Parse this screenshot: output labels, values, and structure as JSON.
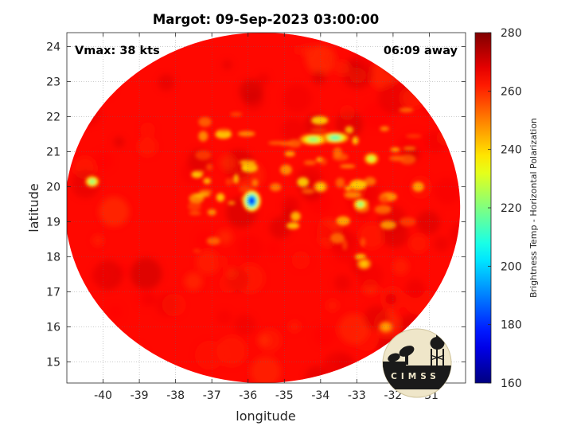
{
  "chart_data": {
    "type": "heatmap",
    "title": "Margot: 09-Sep-2023 03:00:00",
    "xlabel": "longitude",
    "ylabel": "latitude",
    "xlim": [
      -41,
      -30
    ],
    "ylim": [
      14.4,
      24.4
    ],
    "xticks": [
      -40,
      -39,
      -38,
      -37,
      -36,
      -35,
      -34,
      -33,
      -32,
      -31
    ],
    "yticks": [
      15,
      16,
      17,
      18,
      19,
      20,
      21,
      22,
      23,
      24
    ],
    "grid": true,
    "annotations": {
      "vmax": "Vmax: 38 kts",
      "away": "06:09 away"
    },
    "swath": {
      "center_lon": -35.6,
      "center_lat": 19.4,
      "radius_lon": 5.45,
      "radius_lat": 5.0
    },
    "colorbar": {
      "label": "Brightness Temp - Horizontal Polarization",
      "range": [
        160,
        280
      ],
      "ticks": [
        160,
        180,
        200,
        220,
        240,
        260,
        280
      ],
      "colormap": "jet"
    },
    "background_value": 264,
    "features": [
      {
        "lon": -35.9,
        "lat": 19.6,
        "min_value": 178
      },
      {
        "lon": -33.6,
        "lat": 21.4,
        "min_value": 212
      },
      {
        "lon": -34.2,
        "lat": 21.35,
        "min_value": 220
      },
      {
        "lon": -40.3,
        "lat": 20.15,
        "min_value": 218
      },
      {
        "lon": -32.6,
        "lat": 20.8,
        "min_value": 225
      },
      {
        "lon": -32.9,
        "lat": 19.5,
        "min_value": 218
      },
      {
        "lon": -34.0,
        "lat": 20.0,
        "min_value": 238
      },
      {
        "lon": -32.8,
        "lat": 17.8,
        "min_value": 240
      },
      {
        "lon": -32.2,
        "lat": 16.0,
        "min_value": 245
      }
    ],
    "logo_text": "CIMSS"
  }
}
